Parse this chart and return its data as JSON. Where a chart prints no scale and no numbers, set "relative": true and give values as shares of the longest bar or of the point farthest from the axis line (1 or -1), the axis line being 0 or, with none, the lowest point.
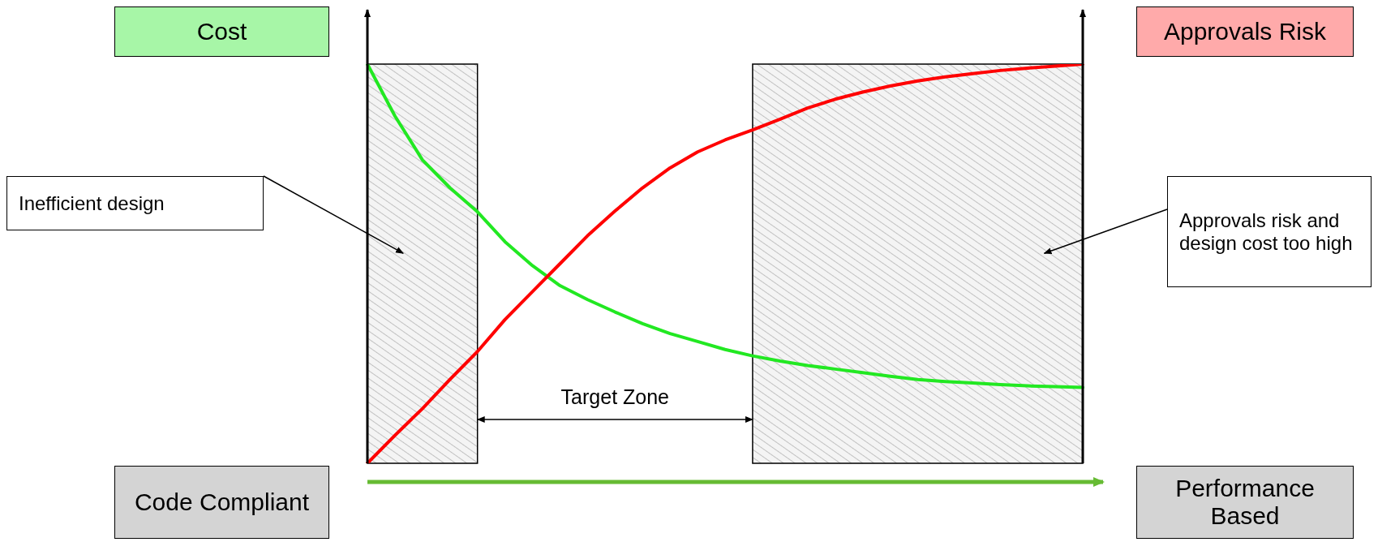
{
  "chart_data": {
    "type": "line",
    "relative": true,
    "ylabel": "Cost",
    "y2label": "Approvals Risk",
    "grid": false,
    "legend": false,
    "marker": "none",
    "line_style": "solid",
    "categories": [
      null,
      null,
      null,
      null,
      null,
      null,
      null,
      null,
      null,
      null,
      null,
      null,
      null,
      null,
      null,
      null,
      null,
      null,
      null,
      null,
      null,
      null,
      null,
      null,
      null,
      null,
      null
    ],
    "series": [
      {
        "color": "#22e822",
        "values": [
          1,
          0.87,
          0.76,
          0.69,
          0.63,
          0.555,
          0.495,
          0.445,
          0.41,
          0.379,
          0.35,
          0.325,
          0.305,
          0.285,
          0.269,
          0.256,
          0.245,
          0.236,
          0.227,
          0.218,
          0.21,
          0.205,
          0.201,
          0.197,
          0.194,
          0.192,
          0.19
        ]
      },
      {
        "color": "#ff0000",
        "values": [
          0,
          0.07,
          0.137,
          0.21,
          0.28,
          0.36,
          0.43,
          0.5,
          0.57,
          0.632,
          0.69,
          0.74,
          0.78,
          0.81,
          0.835,
          0.862,
          0.89,
          0.912,
          0.93,
          0.945,
          0.958,
          0.968,
          0.976,
          0.984,
          0.99,
          0.995,
          1
        ]
      }
    ],
    "annotations": [
      "Inefficient design",
      "Approvals risk and design cost too high",
      "Target Zone",
      "Code Compliant",
      "Performance Based"
    ]
  }
}
